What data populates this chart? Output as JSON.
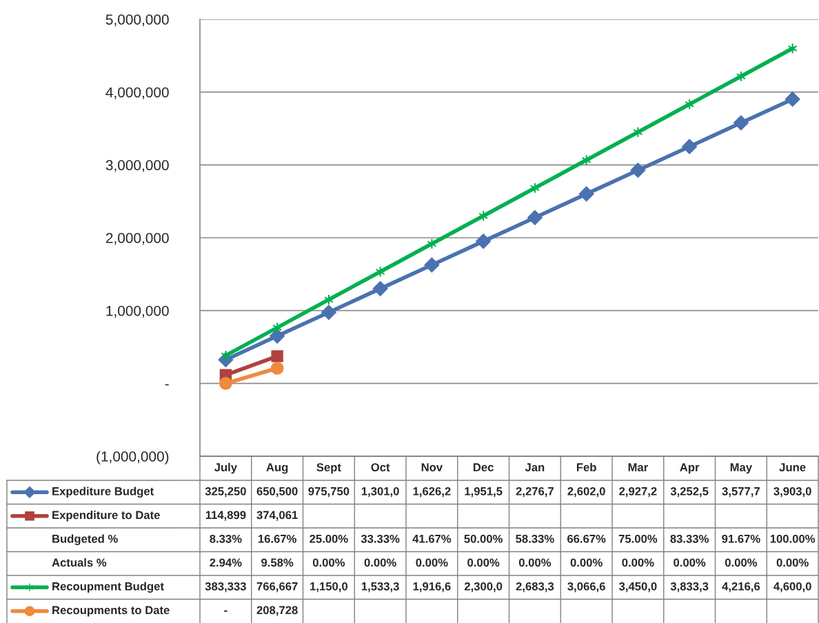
{
  "chart_data": {
    "type": "line",
    "categories": [
      "July",
      "Aug",
      "Sept",
      "Oct",
      "Nov",
      "Dec",
      "Jan",
      "Feb",
      "Mar",
      "Apr",
      "May",
      "June"
    ],
    "ylim": [
      -1000000,
      5000000
    ],
    "yticks": [
      {
        "value": -1000000,
        "label": "(1,000,000)"
      },
      {
        "value": 0,
        "label": "-"
      },
      {
        "value": 1000000,
        "label": "1,000,000"
      },
      {
        "value": 2000000,
        "label": "2,000,000"
      },
      {
        "value": 3000000,
        "label": "3,000,000"
      },
      {
        "value": 4000000,
        "label": "4,000,000"
      },
      {
        "value": 5000000,
        "label": "5,000,000"
      }
    ],
    "grid": "y",
    "legend": "bottom left",
    "series": [
      {
        "name": "Expediture Budget",
        "color": "#4a72b0",
        "marker": "diamond",
        "values": [
          325250,
          650500,
          975750,
          1301000,
          1626250,
          1951500,
          2276750,
          2602000,
          2927250,
          3252500,
          3577750,
          3903000
        ],
        "value_labels": [
          "325,250",
          "650,500",
          "975,750",
          "1,301,0",
          "1,626,2",
          "1,951,5",
          "2,276,7",
          "2,602,0",
          "2,927,2",
          "3,252,5",
          "3,577,7",
          "3,903,0"
        ]
      },
      {
        "name": "Expenditure to Date",
        "color": "#b0413e",
        "marker": "square",
        "values": [
          114899,
          374061,
          null,
          null,
          null,
          null,
          null,
          null,
          null,
          null,
          null,
          null
        ],
        "value_labels": [
          "114,899",
          "374,061",
          null,
          null,
          null,
          null,
          null,
          null,
          null,
          null,
          null,
          null
        ]
      },
      {
        "name": "Budgeted %",
        "values": [
          null,
          null,
          null,
          null,
          null,
          null,
          null,
          null,
          null,
          null,
          null,
          null
        ],
        "value_labels": [
          "8.33%",
          "16.67%",
          "25.00%",
          "33.33%",
          "41.67%",
          "50.00%",
          "58.33%",
          "66.67%",
          "75.00%",
          "83.33%",
          "91.67%",
          "100.00%"
        ]
      },
      {
        "name": "Actuals %",
        "values": [
          null,
          null,
          null,
          null,
          null,
          null,
          null,
          null,
          null,
          null,
          null,
          null
        ],
        "value_labels": [
          "2.94%",
          "9.58%",
          "0.00%",
          "0.00%",
          "0.00%",
          "0.00%",
          "0.00%",
          "0.00%",
          "0.00%",
          "0.00%",
          "0.00%",
          "0.00%"
        ]
      },
      {
        "name": "Recoupment Budget",
        "color": "#00b050",
        "marker": "cross",
        "values": [
          383333,
          766667,
          1150000,
          1533333,
          1916667,
          2300000,
          2683333,
          3066667,
          3450000,
          3833333,
          4216667,
          4600000
        ],
        "value_labels": [
          "383,333",
          "766,667",
          "1,150,0",
          "1,533,3",
          "1,916,6",
          "2,300,0",
          "2,683,3",
          "3,066,6",
          "3,450,0",
          "3,833,3",
          "4,216,6",
          "4,600,0"
        ]
      },
      {
        "name": "Recoupments to Date",
        "color": "#f08a3c",
        "marker": "circle",
        "values": [
          0,
          208728,
          null,
          null,
          null,
          null,
          null,
          null,
          null,
          null,
          null,
          null
        ],
        "value_labels": [
          "-",
          "208,728",
          null,
          null,
          null,
          null,
          null,
          null,
          null,
          null,
          null,
          null
        ]
      }
    ]
  }
}
